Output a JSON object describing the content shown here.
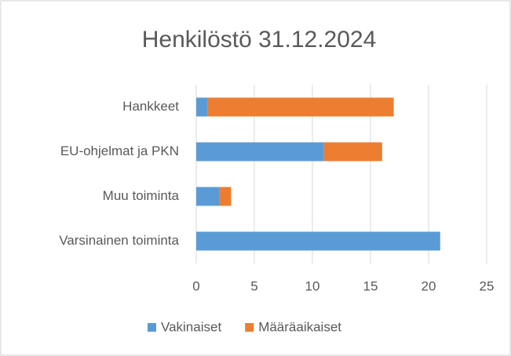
{
  "chart_data": {
    "type": "stacked_barh",
    "title": "Henkilöstö 31.12.2024",
    "categories": [
      "Hankkeet",
      "EU-ohjelmat ja PKN",
      "Muu toiminta",
      "Varsinainen toiminta"
    ],
    "series": [
      {
        "name": "Vakinaiset",
        "color": "#5b9bd5",
        "values": [
          1,
          11,
          2,
          21
        ]
      },
      {
        "name": "Määräaikaiset",
        "color": "#ed7d31",
        "values": [
          16,
          5,
          1,
          0
        ]
      }
    ],
    "xlim": [
      0,
      25
    ],
    "xticks": [
      0,
      5,
      10,
      15,
      20,
      25
    ],
    "grid": true,
    "legend": "bottom"
  }
}
